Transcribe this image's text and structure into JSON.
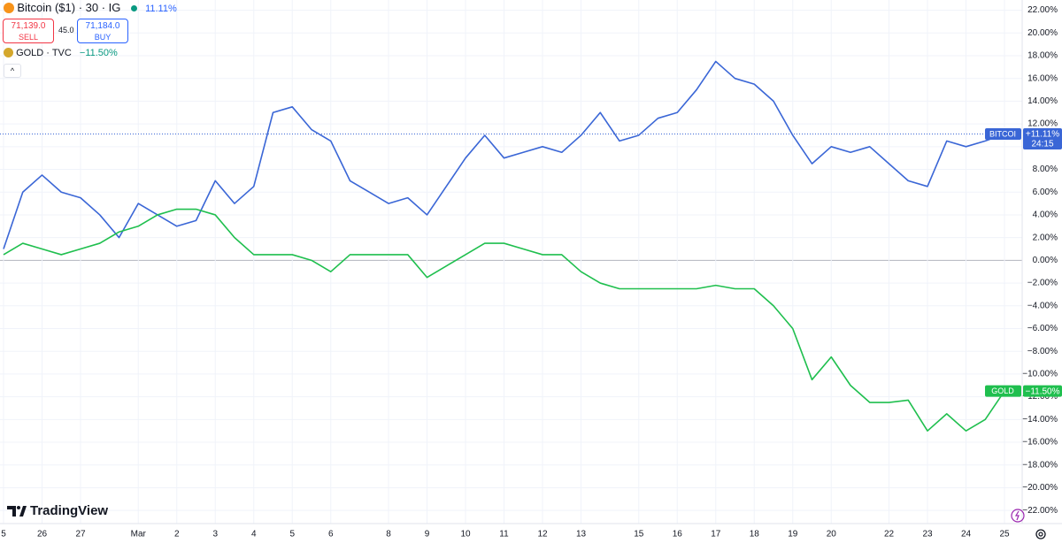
{
  "header": {
    "symbol": "Bitcoin ($1) · 30 · IG",
    "change": "11.11%",
    "sell_price": "71,139.0",
    "sell": "SELL",
    "spread": "45.0",
    "buy_price": "71,184.0",
    "buy": "BUY",
    "compare_symbol": "GOLD · TVC",
    "compare_change": "−11.50%",
    "logo": "TradingView"
  },
  "price_tags": [
    {
      "name": "BITCOI",
      "value": "+11.11%",
      "time": "24:15"
    },
    {
      "name": "GOLD",
      "value": "−11.50%"
    }
  ],
  "chart_data": {
    "type": "line",
    "categories": [
      "5",
      null,
      "26",
      null,
      "27",
      null,
      null,
      "Mar",
      null,
      "2",
      null,
      "3",
      null,
      "4",
      null,
      "5",
      null,
      "6",
      null,
      null,
      "8",
      null,
      "9",
      null,
      "10",
      null,
      "11",
      null,
      "12",
      null,
      "13",
      null,
      null,
      "15",
      null,
      "16",
      null,
      "17",
      null,
      "18",
      null,
      "19",
      null,
      "20",
      null,
      null,
      "22",
      null,
      "23",
      null,
      "24",
      null,
      "25"
    ],
    "series": [
      {
        "name": "Bitcoin",
        "color": "#3a66d6",
        "values": [
          1,
          6,
          7.5,
          6,
          5.5,
          4,
          2,
          5,
          4,
          3,
          3.5,
          7,
          5,
          6.5,
          13,
          13.5,
          11.5,
          10.5,
          7,
          6,
          5,
          5.5,
          4,
          6.5,
          9,
          11,
          9,
          9.5,
          10,
          9.5,
          11,
          13,
          10.5,
          11,
          12.5,
          13,
          15,
          17.5,
          16,
          15.5,
          14,
          11,
          8.5,
          10,
          9.5,
          10,
          8.5,
          7,
          6.5,
          10.5,
          10,
          10.5,
          11.11
        ]
      },
      {
        "name": "Gold",
        "color": "#1fbf4e",
        "values": [
          0.5,
          1.5,
          1,
          0.5,
          1,
          1.5,
          2.5,
          3,
          4,
          4.5,
          4.5,
          4,
          2,
          0.5,
          0.5,
          0.5,
          0,
          -1,
          0.5,
          0.5,
          0.5,
          0.5,
          -1.5,
          -0.5,
          0.5,
          1.5,
          1.5,
          1,
          0.5,
          0.5,
          -1,
          -2,
          -2.5,
          -2.5,
          -2.5,
          -2.5,
          -2.5,
          -2.2,
          -2.5,
          -2.5,
          -4,
          -6,
          -10.5,
          -8.5,
          -11,
          -12.5,
          -12.5,
          -12.3,
          -15,
          -13.5,
          -15,
          -14,
          -11.5
        ]
      }
    ],
    "ylim": [
      -23,
      22.9
    ],
    "yticks": [
      {
        "value": 22,
        "label": "22.00%"
      },
      {
        "value": 20,
        "label": "20.00%"
      },
      {
        "value": 18,
        "label": "18.00%"
      },
      {
        "value": 16,
        "label": "16.00%"
      },
      {
        "value": 14,
        "label": "14.00%"
      },
      {
        "value": 12,
        "label": "12.00%"
      },
      {
        "value": 10,
        "label": "10.00%"
      },
      {
        "value": 8,
        "label": "8.00%"
      },
      {
        "value": 6,
        "label": "6.00%"
      },
      {
        "value": 4,
        "label": "4.00%"
      },
      {
        "value": 2,
        "label": "2.00%"
      },
      {
        "value": 0,
        "label": "0.00%"
      },
      {
        "value": -2,
        "label": "−2.00%"
      },
      {
        "value": -4,
        "label": "−4.00%"
      },
      {
        "value": -6,
        "label": "−6.00%"
      },
      {
        "value": -8,
        "label": "−8.00%"
      },
      {
        "value": -10,
        "label": "−10.00%"
      },
      {
        "value": -12,
        "label": "−12.00%"
      },
      {
        "value": -14,
        "label": "−14.00%"
      },
      {
        "value": -16,
        "label": "−16.00%"
      },
      {
        "value": -18,
        "label": "−18.00%"
      },
      {
        "value": -20,
        "label": "−20.00%"
      },
      {
        "value": -22,
        "label": "−22.00%"
      }
    ],
    "grid": true
  }
}
